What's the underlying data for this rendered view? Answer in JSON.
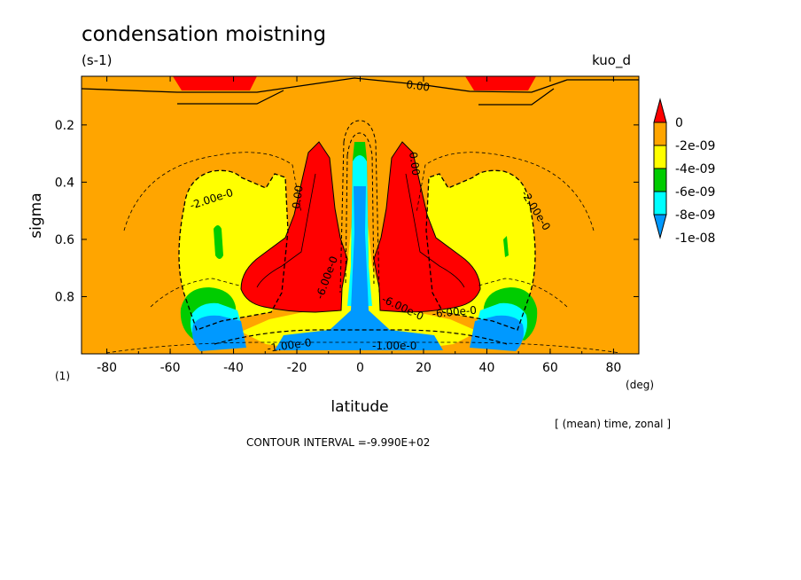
{
  "chart_data": {
    "type": "heatmap",
    "subtype": "filled-contour",
    "title": "condensation moistning",
    "units": "(s-1)",
    "run_label": "kuo_d",
    "xlabel": "latitude",
    "x_unit": "(deg)",
    "ylabel": "sigma",
    "y_corner_label": "(1)",
    "xlim": [
      -88,
      88
    ],
    "ylim": [
      1.0,
      0.03
    ],
    "x_ticks": [
      -80,
      -60,
      -40,
      -20,
      0,
      20,
      40,
      60,
      80
    ],
    "x_tick_labels": [
      "-80",
      "-60",
      "-40",
      "-20",
      "0",
      "20",
      "40",
      "60",
      "80"
    ],
    "y_ticks": [
      0.2,
      0.4,
      0.6,
      0.8
    ],
    "y_tick_labels": [
      "0.2",
      "0.4",
      "0.6",
      "0.8"
    ],
    "colorbar": {
      "levels": [
        "0",
        "-2e-09",
        "-4e-09",
        "-6e-09",
        "-8e-09",
        "-1e-08"
      ],
      "colors": [
        "#ff0000",
        "#ffa500",
        "#ffff00",
        "#00cc00",
        "#00ffff",
        "#0099ff"
      ],
      "placement": "right"
    },
    "contour_labels": [
      "0.00",
      "-2.00e-0",
      "-2.00e-0",
      "0.00",
      "0.00",
      "-6.00e-0",
      "-6.00e-0",
      "-6.00e-0",
      "-1.00e-0",
      "-1.00e-0"
    ],
    "regions": [
      {
        "level": -2e-09,
        "color": "#ffa500",
        "lat": [
          -88,
          88
        ],
        "sigma": [
          0.03,
          1.0
        ],
        "note": "background field"
      },
      {
        "level": 0,
        "color": "#ff0000",
        "lat": [
          -60,
          -35
        ],
        "sigma": [
          0.03,
          0.07
        ]
      },
      {
        "level": 0,
        "color": "#ff0000",
        "lat": [
          35,
          60
        ],
        "sigma": [
          0.03,
          0.07
        ]
      },
      {
        "level": 0,
        "color": "#ff0000",
        "lat": [
          -37,
          -9
        ],
        "sigma": [
          0.25,
          0.85
        ]
      },
      {
        "level": 0,
        "color": "#ff0000",
        "lat": [
          9,
          37
        ],
        "sigma": [
          0.25,
          0.85
        ]
      },
      {
        "level": -4e-09,
        "color": "#ffff00",
        "lat": [
          -58,
          -12
        ],
        "sigma": [
          0.35,
          0.97
        ]
      },
      {
        "level": -4e-09,
        "color": "#ffff00",
        "lat": [
          12,
          58
        ],
        "sigma": [
          0.35,
          0.97
        ]
      },
      {
        "level": -6e-09,
        "color": "#00cc00",
        "lat": [
          -55,
          -35
        ],
        "sigma": [
          0.82,
          0.97
        ]
      },
      {
        "level": -8e-09,
        "color": "#00ffff",
        "lat": [
          -6,
          6
        ],
        "sigma": [
          0.25,
          0.98
        ]
      },
      {
        "level": -1e-08,
        "color": "#0099ff",
        "lat": [
          -50,
          50
        ],
        "sigma": [
          0.85,
          1.0
        ]
      }
    ]
  },
  "annotations": {
    "contour_interval": "CONTOUR INTERVAL =-9.990E+02",
    "averaging": "[ (mean) time, zonal ]"
  }
}
